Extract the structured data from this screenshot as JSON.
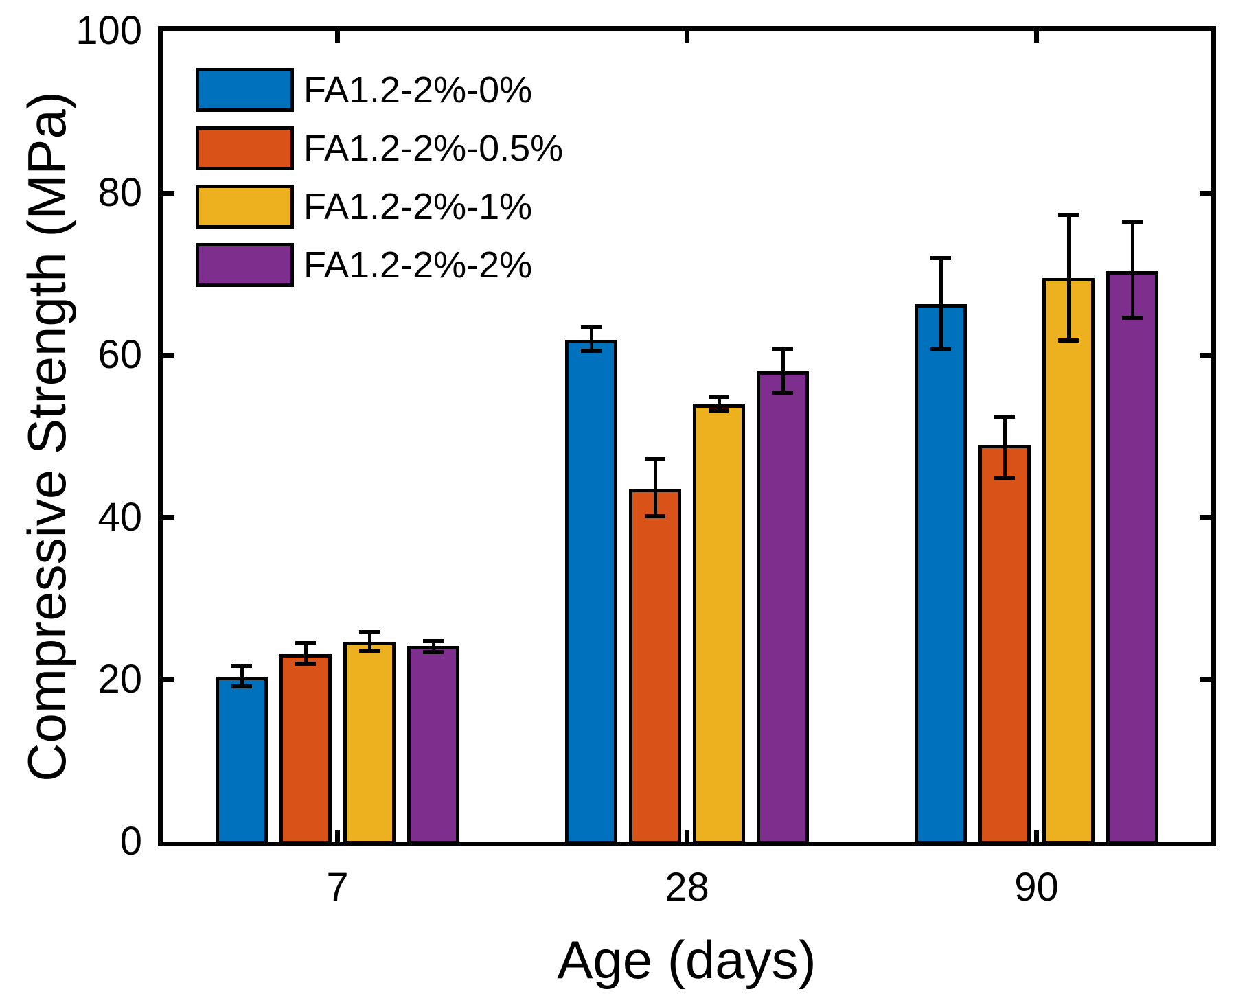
{
  "figure": {
    "background": "#FFFFFF",
    "axis_color": "#000000",
    "bar_edge_color": "#000000",
    "error_bar_color": "#000000"
  },
  "chart_data": {
    "type": "bar",
    "title": "",
    "xlabel": "Age (days)",
    "ylabel": "Compressive Strength (MPa)",
    "categories": [
      "7",
      "28",
      "90"
    ],
    "y_ticks": [
      0,
      20,
      40,
      60,
      80,
      100
    ],
    "ylim": [
      0,
      100
    ],
    "grid": false,
    "legend_position": "top-left-inside",
    "error_bars": "asymmetric, black caps",
    "series": [
      {
        "name": "FA1.2-2%-0%",
        "color": "#0072BD",
        "values": [
          20.3,
          61.9,
          66.3
        ],
        "err_plus": [
          1.4,
          1.6,
          5.7
        ],
        "err_minus": [
          1.2,
          1.4,
          5.6
        ]
      },
      {
        "name": "FA1.2-2%-0.5%",
        "color": "#D95319",
        "values": [
          23.1,
          43.5,
          48.9
        ],
        "err_plus": [
          1.4,
          3.7,
          3.5
        ],
        "err_minus": [
          1.2,
          3.4,
          4.1
        ]
      },
      {
        "name": "FA1.2-2%-1%",
        "color": "#EDB120",
        "values": [
          24.6,
          53.9,
          69.5
        ],
        "err_plus": [
          1.2,
          0.9,
          7.8
        ],
        "err_minus": [
          1.1,
          0.7,
          7.7
        ]
      },
      {
        "name": "FA1.2-2%-2%",
        "color": "#7E2F8E",
        "values": [
          24.1,
          58.0,
          70.4
        ],
        "err_plus": [
          0.6,
          2.8,
          6.0
        ],
        "err_minus": [
          0.7,
          2.6,
          5.8
        ]
      }
    ]
  }
}
